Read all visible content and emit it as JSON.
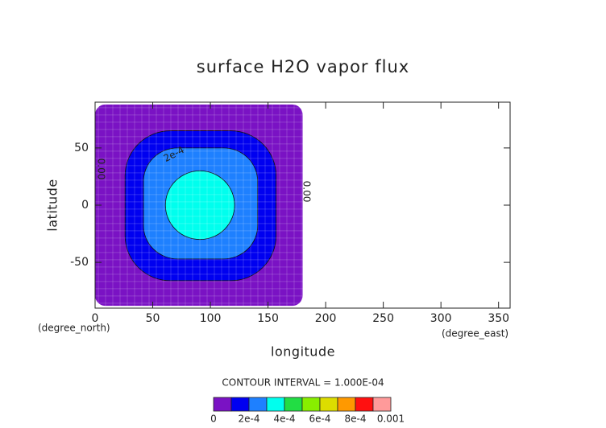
{
  "chart_data": {
    "type": "contour",
    "title": "surface H2O vapor flux",
    "x_label": "longitude",
    "y_label": "latitude",
    "x_unit": "(degree_east)",
    "y_unit": "(degree_north)",
    "xlim": [
      0,
      360
    ],
    "ylim": [
      -90,
      90
    ],
    "xticks": [
      0,
      50,
      100,
      150,
      200,
      250,
      300,
      350
    ],
    "yticks": [
      -50,
      0,
      50
    ],
    "contour_interval": "CONTOUR INTERVAL = 1.000E-04",
    "levels": [
      0,
      0.0001,
      0.0002,
      0.0003,
      0.0004,
      0.0005,
      0.0006,
      0.0007,
      0.0008,
      0.0009,
      0.001
    ],
    "colors": [
      "#7a12c4",
      "#0000f0",
      "#1e80ff",
      "#00ffee",
      "#22dd44",
      "#88ee00",
      "#dddd00",
      "#ff9900",
      "#ff1010",
      "#ff9a9a"
    ],
    "colorbar_ticks": [
      0,
      {
        "value": 0.0002,
        "label": "2e-4"
      },
      {
        "value": 0.0004,
        "label": "4e-4"
      },
      {
        "value": 0.0006,
        "label": "6e-4"
      },
      {
        "value": 0.0008,
        "label": "8e-4"
      },
      0.001
    ],
    "regions": [
      {
        "level": 0,
        "lon": [
          0,
          180
        ],
        "lat": [
          -88,
          88
        ]
      },
      {
        "level": 0.0001,
        "lon": [
          26,
          157
        ],
        "lat": [
          -66,
          65
        ]
      },
      {
        "level": 0.0002,
        "lon": [
          42,
          141
        ],
        "lat": [
          -47,
          50
        ]
      },
      {
        "level": 0.0003,
        "lon": [
          61,
          121
        ],
        "lat": [
          -30,
          30
        ]
      }
    ],
    "contour_labels": [
      "2e-4",
      "0.00",
      "0.00"
    ]
  }
}
